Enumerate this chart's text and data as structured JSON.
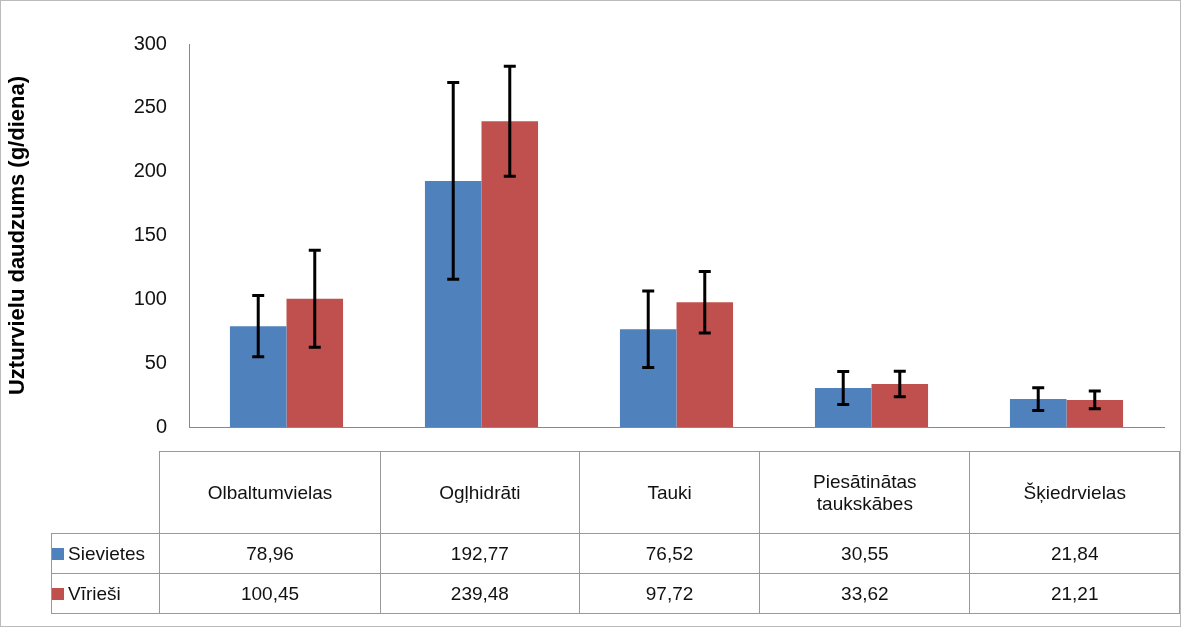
{
  "chart_data": {
    "type": "bar",
    "ylabel": "Uzturvielu daudzums (g/diena)",
    "categories": [
      "Olbaltumvielas",
      "Ogļhidrāti",
      "Tauki",
      "Piesātinātas taukskābes",
      "Šķiedrvielas"
    ],
    "ylim": [
      0,
      300
    ],
    "yticks": [
      0,
      50,
      100,
      150,
      200,
      250,
      300
    ],
    "grid": false,
    "legend": "bottom",
    "series": [
      {
        "name": "Sievietes",
        "color": "#4f81bd",
        "values": [
          78.96,
          192.77,
          76.52,
          30.55,
          21.84
        ],
        "errors": [
          24,
          77,
          30,
          13,
          9
        ],
        "value_labels": [
          "78,96",
          "192,77",
          "76,52",
          "30,55",
          "21,84"
        ]
      },
      {
        "name": "Vīrieši",
        "color": "#c0504d",
        "values": [
          100.45,
          239.48,
          97.72,
          33.62,
          21.21
        ],
        "errors": [
          38,
          43,
          24,
          10,
          7
        ],
        "value_labels": [
          "100,45",
          "239,48",
          "97,72",
          "33,62",
          "21,21"
        ]
      }
    ]
  }
}
